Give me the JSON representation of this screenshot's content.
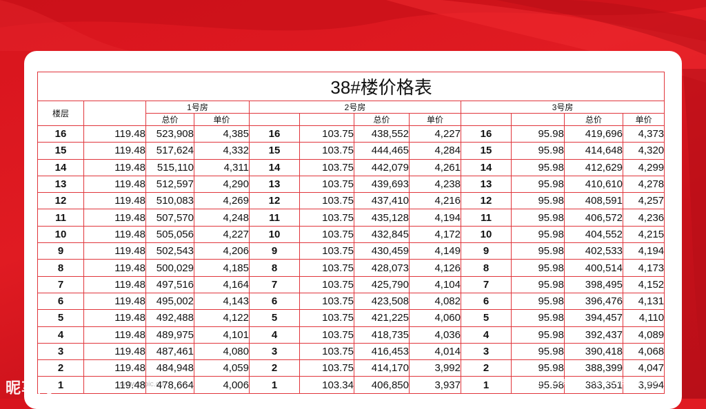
{
  "title": "38#楼价格表",
  "header": {
    "floor_label": "楼层",
    "units": [
      "1号房",
      "2号房",
      "3号房"
    ],
    "total_label": "总价",
    "unit_price_label": "单价"
  },
  "rows": [
    {
      "floor": "16",
      "u1": [
        "119.48",
        "523,908",
        "4,385"
      ],
      "u2": [
        "16",
        "103.75",
        "438,552",
        "4,227"
      ],
      "u3": [
        "16",
        "95.98",
        "419,696",
        "4,373"
      ]
    },
    {
      "floor": "15",
      "u1": [
        "119.48",
        "517,624",
        "4,332"
      ],
      "u2": [
        "15",
        "103.75",
        "444,465",
        "4,284"
      ],
      "u3": [
        "15",
        "95.98",
        "414,648",
        "4,320"
      ]
    },
    {
      "floor": "14",
      "u1": [
        "119.48",
        "515,110",
        "4,311"
      ],
      "u2": [
        "14",
        "103.75",
        "442,079",
        "4,261"
      ],
      "u3": [
        "14",
        "95.98",
        "412,629",
        "4,299"
      ]
    },
    {
      "floor": "13",
      "u1": [
        "119.48",
        "512,597",
        "4,290"
      ],
      "u2": [
        "13",
        "103.75",
        "439,693",
        "4,238"
      ],
      "u3": [
        "13",
        "95.98",
        "410,610",
        "4,278"
      ]
    },
    {
      "floor": "12",
      "u1": [
        "119.48",
        "510,083",
        "4,269"
      ],
      "u2": [
        "12",
        "103.75",
        "437,410",
        "4,216"
      ],
      "u3": [
        "12",
        "95.98",
        "408,591",
        "4,257"
      ]
    },
    {
      "floor": "11",
      "u1": [
        "119.48",
        "507,570",
        "4,248"
      ],
      "u2": [
        "11",
        "103.75",
        "435,128",
        "4,194"
      ],
      "u3": [
        "11",
        "95.98",
        "406,572",
        "4,236"
      ]
    },
    {
      "floor": "10",
      "u1": [
        "119.48",
        "505,056",
        "4,227"
      ],
      "u2": [
        "10",
        "103.75",
        "432,845",
        "4,172"
      ],
      "u3": [
        "10",
        "95.98",
        "404,552",
        "4,215"
      ]
    },
    {
      "floor": "9",
      "u1": [
        "119.48",
        "502,543",
        "4,206"
      ],
      "u2": [
        "9",
        "103.75",
        "430,459",
        "4,149"
      ],
      "u3": [
        "9",
        "95.98",
        "402,533",
        "4,194"
      ]
    },
    {
      "floor": "8",
      "u1": [
        "119.48",
        "500,029",
        "4,185"
      ],
      "u2": [
        "8",
        "103.75",
        "428,073",
        "4,126"
      ],
      "u3": [
        "8",
        "95.98",
        "400,514",
        "4,173"
      ]
    },
    {
      "floor": "7",
      "u1": [
        "119.48",
        "497,516",
        "4,164"
      ],
      "u2": [
        "7",
        "103.75",
        "425,790",
        "4,104"
      ],
      "u3": [
        "7",
        "95.98",
        "398,495",
        "4,152"
      ]
    },
    {
      "floor": "6",
      "u1": [
        "119.48",
        "495,002",
        "4,143"
      ],
      "u2": [
        "6",
        "103.75",
        "423,508",
        "4,082"
      ],
      "u3": [
        "6",
        "95.98",
        "396,476",
        "4,131"
      ]
    },
    {
      "floor": "5",
      "u1": [
        "119.48",
        "492,488",
        "4,122"
      ],
      "u2": [
        "5",
        "103.75",
        "421,225",
        "4,060"
      ],
      "u3": [
        "5",
        "95.98",
        "394,457",
        "4,110"
      ]
    },
    {
      "floor": "4",
      "u1": [
        "119.48",
        "489,975",
        "4,101"
      ],
      "u2": [
        "4",
        "103.75",
        "418,735",
        "4,036"
      ],
      "u3": [
        "4",
        "95.98",
        "392,437",
        "4,089"
      ]
    },
    {
      "floor": "3",
      "u1": [
        "119.48",
        "487,461",
        "4,080"
      ],
      "u2": [
        "3",
        "103.75",
        "416,453",
        "4,014"
      ],
      "u3": [
        "3",
        "95.98",
        "390,418",
        "4,068"
      ]
    },
    {
      "floor": "2",
      "u1": [
        "119.48",
        "484,948",
        "4,059"
      ],
      "u2": [
        "2",
        "103.75",
        "414,170",
        "3,992"
      ],
      "u3": [
        "2",
        "95.98",
        "388,399",
        "4,047"
      ]
    },
    {
      "floor": "1",
      "u1": [
        "119.48",
        "478,664",
        "4,006"
      ],
      "u2": [
        "1",
        "103.34",
        "406,850",
        "3,937"
      ],
      "u3": [
        "1",
        "95.98",
        "383,351",
        "3,994"
      ]
    }
  ],
  "watermark": {
    "brand": "昵享网",
    "url": "www.nipic.cn",
    "id": "ID:1113996:2021020905625613084"
  },
  "colors": {
    "background": "#d8141d",
    "grid": "#e0343a"
  }
}
